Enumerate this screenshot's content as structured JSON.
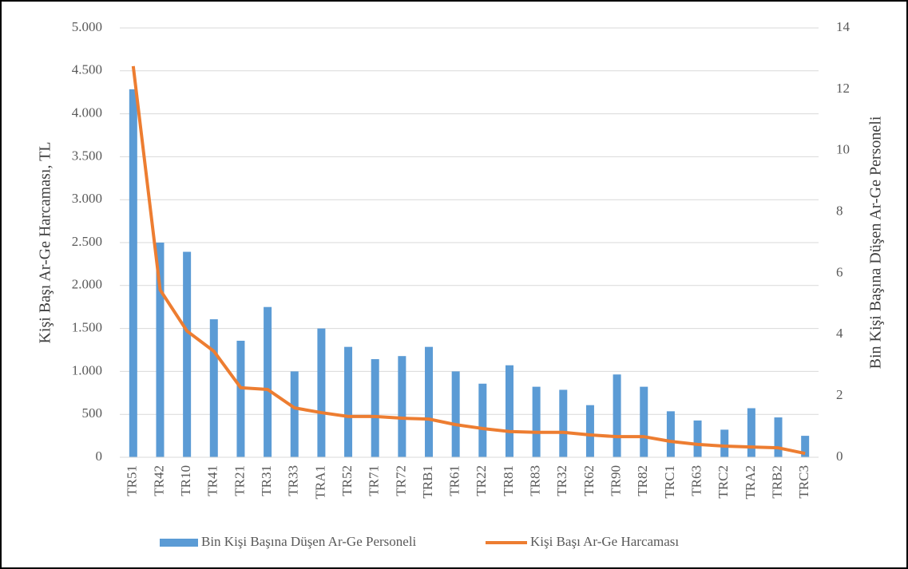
{
  "chart_data": {
    "type": "bar_line",
    "y_label": "Kişi Başı Ar-Ge Harcaması, TL",
    "y2_label": "Bin Kişi Başına Düşen Ar-Ge Personeli",
    "categories": [
      "TR51",
      "TR42",
      "TR10",
      "TR41",
      "TR21",
      "TR31",
      "TR33",
      "TRA1",
      "TR52",
      "TR71",
      "TR72",
      "TRB1",
      "TR61",
      "TR22",
      "TR81",
      "TR83",
      "TR32",
      "TR62",
      "TR90",
      "TR82",
      "TRC1",
      "TR63",
      "TRC2",
      "TRA2",
      "TRB2",
      "TRC3"
    ],
    "series": [
      {
        "name": "Bin Kişi Başına Düşen Ar-Ge Personeli",
        "type": "bar",
        "axis": "y2",
        "color": "#5b9bd5",
        "values": [
          12.0,
          7.0,
          6.7,
          4.5,
          3.8,
          4.9,
          2.8,
          4.2,
          3.6,
          3.2,
          3.3,
          3.6,
          2.8,
          2.4,
          3.0,
          2.3,
          2.2,
          1.7,
          2.7,
          2.3,
          1.5,
          1.2,
          0.9,
          1.6,
          1.3,
          0.7
        ]
      },
      {
        "name": "Kişi Başı Ar-Ge Harcaması",
        "type": "line",
        "axis": "y",
        "color": "#ed7d31",
        "values": [
          4555,
          1950,
          1470,
          1235,
          810,
          790,
          575,
          520,
          475,
          475,
          455,
          445,
          380,
          335,
          300,
          290,
          290,
          260,
          240,
          240,
          185,
          150,
          130,
          120,
          110,
          45
        ]
      }
    ],
    "ylim": [
      0,
      5000
    ],
    "yticks": [
      0,
      500,
      {
        "value": 1000,
        "label": "1.000"
      },
      {
        "value": 1500,
        "label": "1.500"
      },
      {
        "value": 2000,
        "label": "2.000"
      },
      {
        "value": 2500,
        "label": "2.500"
      },
      {
        "value": 3000,
        "label": "3.000"
      },
      {
        "value": 3500,
        "label": "3.500"
      },
      {
        "value": 4000,
        "label": "4.000"
      },
      {
        "value": 4500,
        "label": "4.500"
      },
      {
        "value": 5000,
        "label": "5.000"
      }
    ],
    "y2lim": [
      0,
      14
    ],
    "y2ticks": [
      0,
      2,
      4,
      6,
      8,
      10,
      12,
      14
    ],
    "grid": true,
    "legend": "bottom"
  }
}
